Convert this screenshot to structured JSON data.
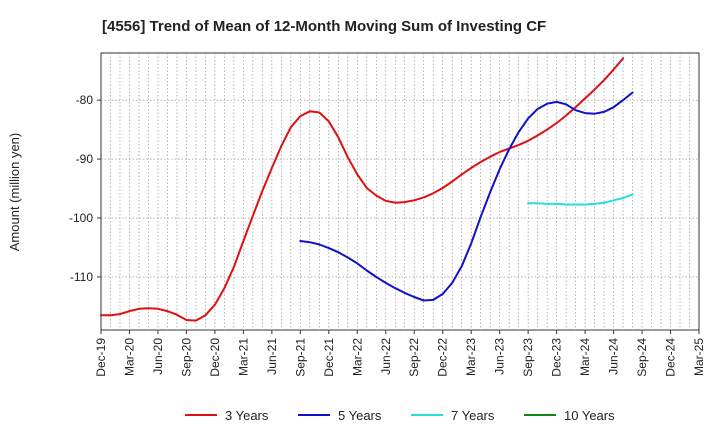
{
  "chart_data": {
    "type": "line",
    "title": "[4556]  Trend of Mean of 12-Month Moving Sum of Investing CF",
    "xlabel": "",
    "ylabel": "Amount (million yen)",
    "ylim": [
      -119,
      -72
    ],
    "y_ticks": [
      -110,
      -100,
      -90,
      -80
    ],
    "y_tick_labels": [
      "-110",
      "-100",
      "-90",
      "-80"
    ],
    "x_ticks": [
      "Dec-19",
      "Mar-20",
      "Jun-20",
      "Sep-20",
      "Dec-20",
      "Mar-21",
      "Jun-21",
      "Sep-21",
      "Dec-21",
      "Mar-22",
      "Jun-22",
      "Sep-22",
      "Dec-22",
      "Mar-23",
      "Jun-23",
      "Sep-23",
      "Dec-23",
      "Mar-24",
      "Jun-24",
      "Sep-24",
      "Dec-24",
      "Mar-25"
    ],
    "grid": true,
    "legend_position": "bottom",
    "series": [
      {
        "name": "3 Years",
        "color": "#dd1111",
        "start_index": 0,
        "values": [
          -116.5,
          -116.5,
          -116.3,
          -115.8,
          -115.4,
          -115.3,
          -115.4,
          -115.8,
          -116.4,
          -117.3,
          -117.4,
          -116.5,
          -114.7,
          -111.9,
          -108.3,
          -103.9,
          -99.6,
          -95.4,
          -91.5,
          -87.8,
          -84.6,
          -82.7,
          -81.9,
          -82.1,
          -83.6,
          -86.3,
          -89.7,
          -92.6,
          -94.9,
          -96.2,
          -97.1,
          -97.4,
          -97.3,
          -97.0,
          -96.5,
          -95.8,
          -94.9,
          -93.8,
          -92.6,
          -91.5,
          -90.5,
          -89.6,
          -88.8,
          -88.2,
          -87.6,
          -86.9,
          -86.0,
          -85.0,
          -83.9,
          -82.6,
          -81.2,
          -79.7,
          -78.2,
          -76.6,
          -74.8,
          -72.9
        ]
      },
      {
        "name": "5 Years",
        "color": "#1111cc",
        "start_index": 21,
        "values": [
          -103.9,
          -104.1,
          -104.5,
          -105.1,
          -105.8,
          -106.7,
          -107.7,
          -108.9,
          -110.0,
          -111.0,
          -111.9,
          -112.7,
          -113.4,
          -114.0,
          -113.9,
          -112.9,
          -111.0,
          -108.2,
          -104.3,
          -99.8,
          -95.6,
          -91.7,
          -88.3,
          -85.4,
          -83.1,
          -81.5,
          -80.6,
          -80.3,
          -80.7,
          -81.7,
          -82.2,
          -82.3,
          -82.0,
          -81.2,
          -80.0,
          -78.7
        ]
      },
      {
        "name": "7 Years",
        "color": "#22e0e0",
        "start_index": 45,
        "values": [
          -97.5,
          -97.5,
          -97.6,
          -97.6,
          -97.7,
          -97.7,
          -97.7,
          -97.6,
          -97.4,
          -97.0,
          -96.6,
          -96.0
        ]
      },
      {
        "name": "10 Years",
        "color": "#118811",
        "start_index": 0,
        "values": []
      }
    ]
  }
}
